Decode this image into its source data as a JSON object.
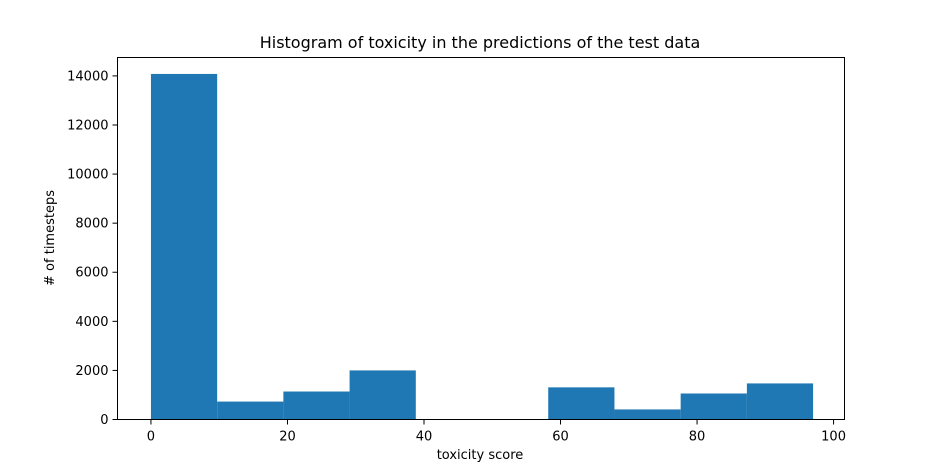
{
  "chart_data": {
    "type": "bar",
    "title": "Histogram of toxicity in the predictions of the test data",
    "xlabel": "toxicity score",
    "ylabel": "# of timesteps",
    "xlim": [
      -4.9,
      101.6
    ],
    "ylim": [
      0,
      14750
    ],
    "xticks": [
      0,
      20,
      40,
      60,
      80,
      100
    ],
    "yticks": [
      0,
      2000,
      4000,
      6000,
      8000,
      10000,
      12000,
      14000
    ],
    "bar_color": "#1f77b4",
    "bins": [
      {
        "x0": 0.0,
        "x1": 9.7,
        "count": 14080
      },
      {
        "x0": 9.7,
        "x1": 19.4,
        "count": 730
      },
      {
        "x0": 19.4,
        "x1": 29.1,
        "count": 1140
      },
      {
        "x0": 29.1,
        "x1": 38.8,
        "count": 2000
      },
      {
        "x0": 38.8,
        "x1": 48.5,
        "count": 0
      },
      {
        "x0": 48.5,
        "x1": 58.2,
        "count": 0
      },
      {
        "x0": 58.2,
        "x1": 67.9,
        "count": 1310
      },
      {
        "x0": 67.9,
        "x1": 77.6,
        "count": 410
      },
      {
        "x0": 77.6,
        "x1": 87.3,
        "count": 1060
      },
      {
        "x0": 87.3,
        "x1": 97.0,
        "count": 1470
      }
    ]
  }
}
